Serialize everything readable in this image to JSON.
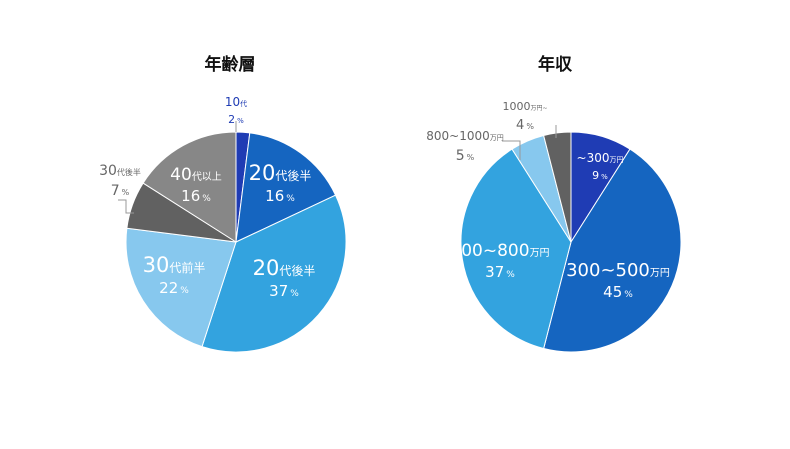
{
  "chart_data": [
    {
      "type": "pie",
      "title": "年齢層",
      "unit": "%",
      "categories": [
        "10代",
        "20代後半",
        "20代後半",
        "30代前半",
        "30代後半",
        "40代以上"
      ],
      "label_num": [
        "10",
        "20",
        "20",
        "30",
        "30",
        "40"
      ],
      "label_suffix": [
        "代",
        "代後半",
        "代後半",
        "代前半",
        "代後半",
        "代以上"
      ],
      "values": [
        2,
        16,
        37,
        22,
        7,
        16
      ],
      "colors": [
        "#1f3cb4",
        "#1565c0",
        "#33a3df",
        "#87c8ee",
        "#616161",
        "#878787"
      ]
    },
    {
      "type": "pie",
      "title": "年収",
      "unit": "%",
      "categories": [
        "~300万円",
        "300~500万円",
        "500~800万円",
        "800~1000万円",
        "1000万円~"
      ],
      "label_num": [
        "~300",
        "300~500",
        "500~800",
        "800~1000",
        "1000"
      ],
      "label_suffix": [
        "万円",
        "万円",
        "万円",
        "万円",
        "万円~"
      ],
      "values": [
        9,
        45,
        37,
        5,
        4
      ],
      "colors": [
        "#1f3cb4",
        "#1565c0",
        "#33a3df",
        "#87c8ee",
        "#616161"
      ]
    }
  ]
}
